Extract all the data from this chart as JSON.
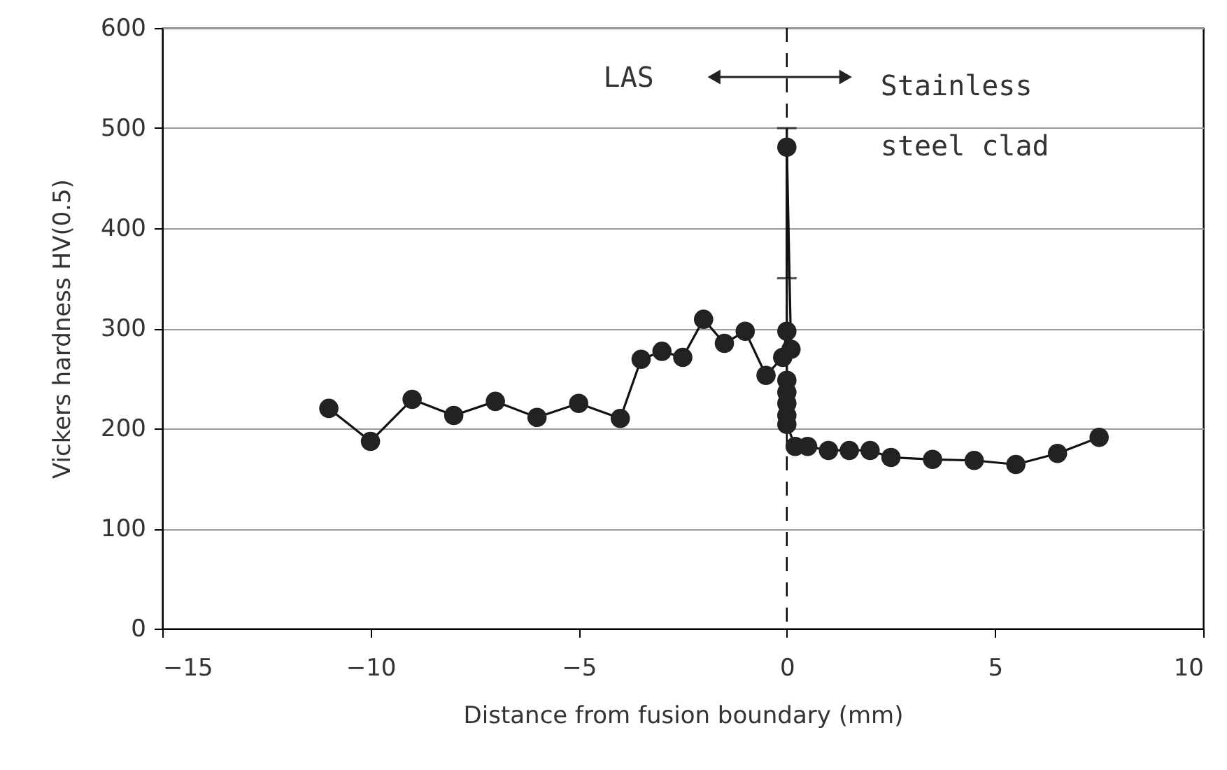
{
  "chart_data": {
    "type": "line",
    "xlabel": "Distance from fusion boundary (mm)",
    "ylabel": "Vickers hardness HV(0.5)",
    "series": [
      {
        "color": "#222222",
        "x": [
          -11,
          -10,
          -9,
          -8,
          -7,
          -6,
          -5,
          -4,
          -3.5,
          -3,
          -2.5,
          -2,
          -1.5,
          -1,
          -0.5,
          -0.1,
          0,
          0.1,
          0,
          0,
          0,
          0,
          0,
          0,
          0.2,
          0.5,
          1,
          1.5,
          2,
          2.5,
          3.5,
          4.5,
          5.5,
          6.5,
          7.5
        ],
        "values": [
          220,
          187,
          229,
          213,
          227,
          211,
          225,
          210,
          269,
          277,
          271,
          309,
          285,
          297,
          253,
          271,
          297,
          279,
          481,
          248,
          236,
          225,
          213,
          204,
          182,
          182,
          178,
          178,
          178,
          171,
          169,
          168,
          164,
          175,
          191
        ],
        "errors": [
          null,
          null,
          null,
          null,
          null,
          null,
          null,
          null,
          null,
          null,
          null,
          null,
          null,
          null,
          null,
          null,
          null,
          null,
          [
            350,
            500
          ],
          null,
          null,
          null,
          null,
          null,
          null,
          null,
          null,
          null,
          null,
          null,
          null,
          null,
          null,
          null,
          null
        ]
      }
    ],
    "xlim": [
      -15,
      10
    ],
    "xticks": [
      -15,
      -10,
      -5,
      0,
      5,
      10
    ],
    "ylim": [
      0,
      600
    ],
    "yticks": [
      0,
      100,
      200,
      300,
      400,
      500,
      600
    ],
    "grid": "y",
    "marker": "circle",
    "line_style": "solid",
    "ref_lines": [
      {
        "axis": "x",
        "value": 0,
        "line_style": "dashed",
        "color": "#000000"
      }
    ],
    "annotations": [
      "LAS",
      "Stainless\nsteel clad"
    ]
  }
}
